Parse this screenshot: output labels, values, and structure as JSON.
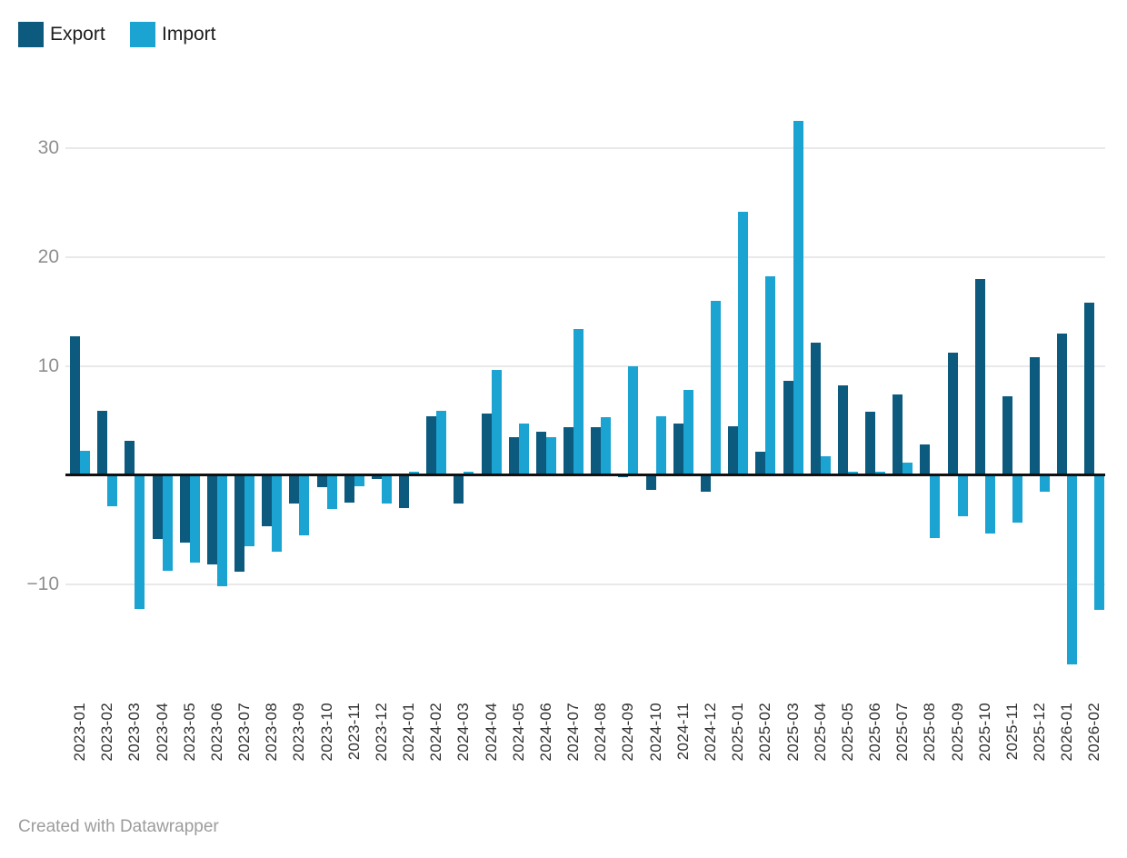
{
  "legend": {
    "items": [
      {
        "label": "Export",
        "color": "#0c5a7d"
      },
      {
        "label": "Import",
        "color": "#1ba3d1"
      }
    ]
  },
  "footer": {
    "text": "Created with Datawrapper"
  },
  "chart_data": {
    "type": "bar",
    "title": "",
    "xlabel": "",
    "ylabel": "",
    "grid": true,
    "legend_position": "top-left",
    "ylim": [
      -18,
      34
    ],
    "y_ticks": [
      {
        "value": 30,
        "label": "30"
      },
      {
        "value": 20,
        "label": "20"
      },
      {
        "value": 10,
        "label": "10"
      },
      {
        "value": -10,
        "label": "−10"
      }
    ],
    "categories": [
      "2023-01",
      "2023-02",
      "2023-03",
      "2023-04",
      "2023-05",
      "2023-06",
      "2023-07",
      "2023-08",
      "2023-09",
      "2023-10",
      "2023-11",
      "2023-12",
      "2024-01",
      "2024-02",
      "2024-03",
      "2024-04",
      "2024-05",
      "2024-06",
      "2024-07",
      "2024-08",
      "2024-09",
      "2024-10",
      "2024-11",
      "2024-12",
      "2025-01",
      "2025-02",
      "2025-03",
      "2025-04",
      "2025-05",
      "2025-06",
      "2025-07",
      "2025-08",
      "2025-09",
      "2025-10",
      "2025-11",
      "2025-12",
      "2026-01",
      "2026-02"
    ],
    "series": [
      {
        "name": "Export",
        "color": "#0c5a7d",
        "values": [
          12.7,
          5.9,
          3.1,
          -5.9,
          -6.2,
          -8.2,
          -8.9,
          -4.7,
          -2.6,
          -1.1,
          -2.5,
          -0.4,
          -3.0,
          5.4,
          -2.6,
          5.6,
          3.5,
          4.0,
          4.4,
          4.4,
          -0.2,
          -1.4,
          4.7,
          -1.5,
          4.5,
          2.1,
          8.6,
          12.1,
          8.2,
          5.8,
          7.4,
          2.8,
          11.2,
          18.0,
          7.2,
          10.8,
          13.0,
          15.8
        ]
      },
      {
        "name": "Import",
        "color": "#1ba3d1",
        "values": [
          2.2,
          -2.9,
          -12.3,
          -8.8,
          -8.0,
          -10.2,
          -6.5,
          -7.0,
          -5.5,
          -3.1,
          -1.0,
          -2.6,
          0.3,
          5.9,
          0.3,
          9.6,
          4.7,
          3.5,
          13.4,
          5.3,
          10.0,
          5.4,
          7.8,
          16.0,
          24.1,
          18.2,
          32.5,
          1.7,
          0.3,
          0.3,
          1.1,
          -5.8,
          -3.8,
          -5.4,
          -4.4,
          -1.5,
          -17.4,
          -12.4
        ]
      }
    ]
  }
}
